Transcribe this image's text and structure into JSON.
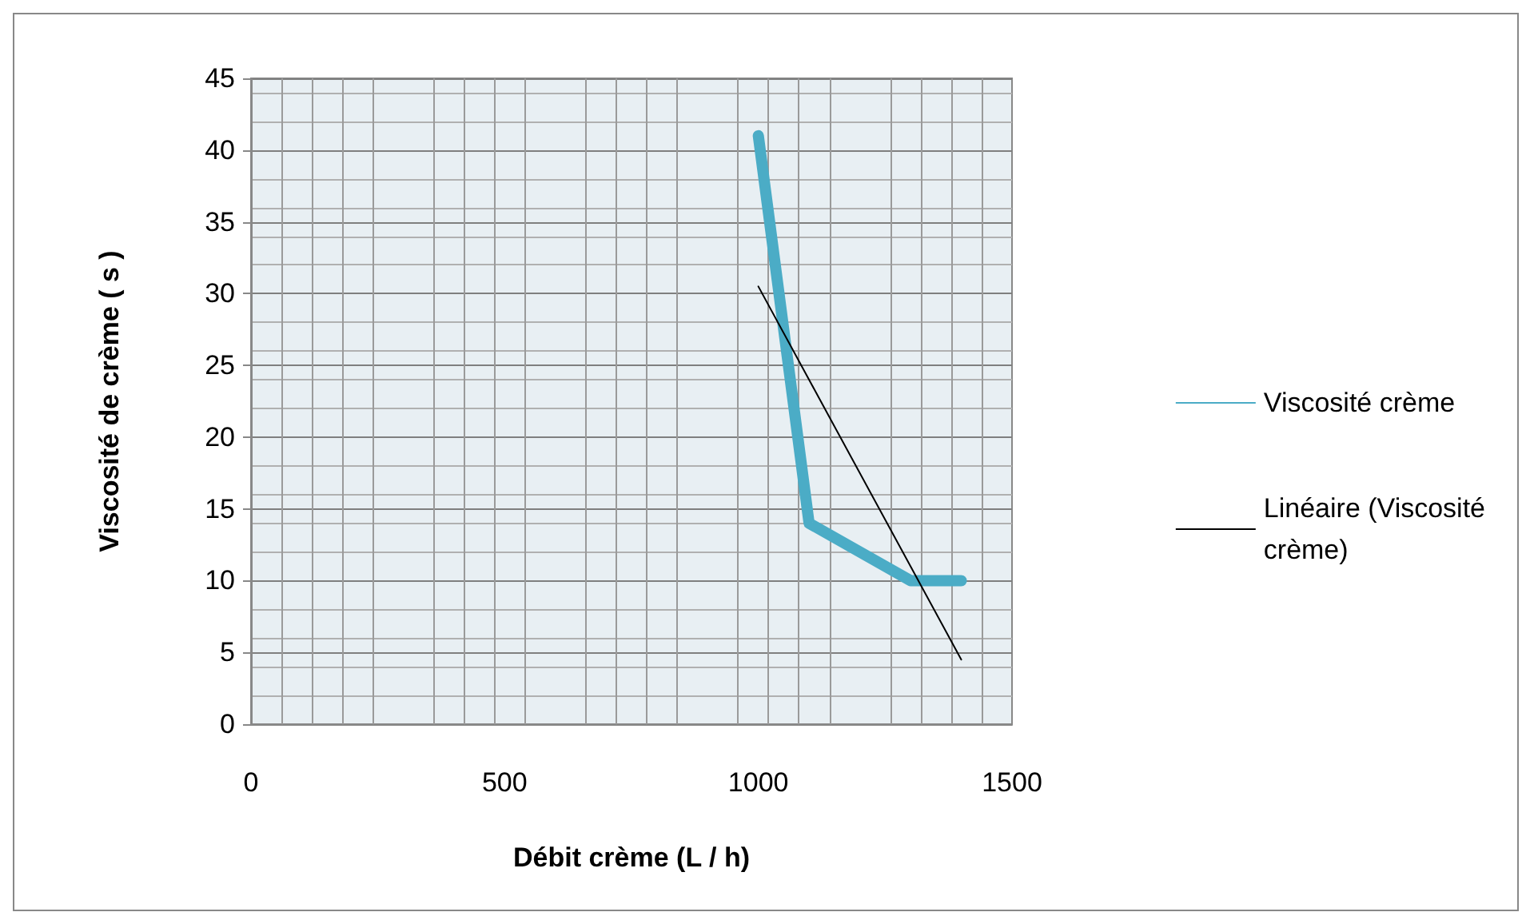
{
  "chart_data": {
    "type": "line",
    "xlabel": "Débit crème (L / h)",
    "ylabel": "Viscosité de crème ( s )",
    "xlim": [
      0,
      1500
    ],
    "xticks": [
      0,
      500,
      1000,
      1500
    ],
    "ylim": [
      0,
      45
    ],
    "yticks": [
      0,
      5,
      10,
      15,
      20,
      25,
      30,
      35,
      40,
      45
    ],
    "grid": true,
    "legend": "right",
    "marker": "none",
    "series": [
      {
        "name": "Viscosité crème",
        "color": "#4bacc6",
        "x": [
          1000,
          1100,
          1300,
          1400
        ],
        "values": [
          41,
          14,
          10,
          10
        ]
      },
      {
        "name": "Linéaire (Viscosité crème)",
        "color": "#000000",
        "x": [
          1000,
          1400
        ],
        "values": [
          30.5,
          4.5
        ]
      }
    ]
  }
}
